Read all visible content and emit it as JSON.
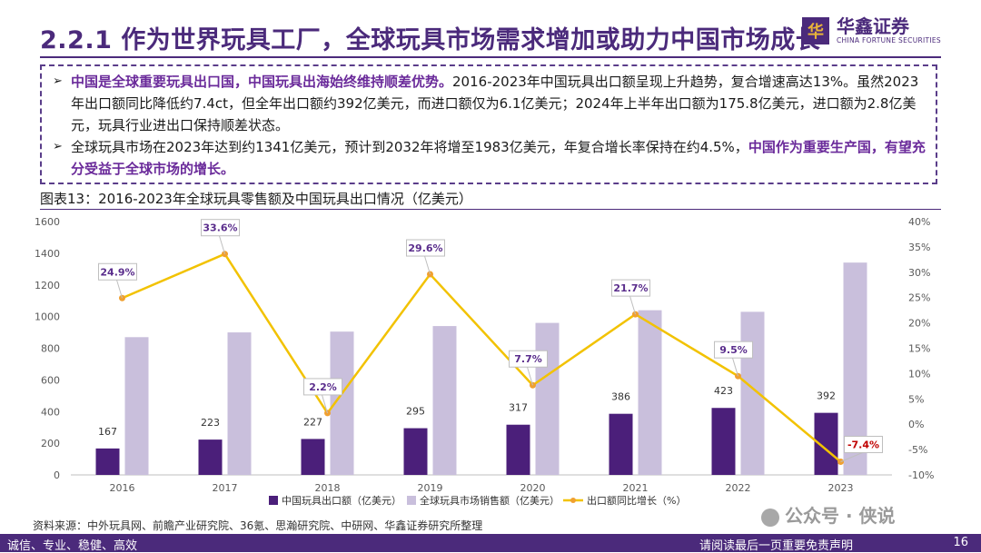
{
  "title": "2.2.1 作为世界玩具工厂，全球玩具市场需求增加或助力中国市场成长",
  "logo": {
    "mark": "华",
    "cn": "华鑫证券",
    "en": "CHINA FORTUNE SECURITIES"
  },
  "bullets": [
    {
      "marker": "➢",
      "highlight": "中国是全球重要玩具出口国，中国玩具出海始终维持顺差优势。",
      "text": "2016-2023年中国玩具出口额呈现上升趋势，复合增速高达13%。虽然2023年出口额同比降低约7.4ct，但全年出口额约392亿美元，而进口额仅为6.1亿美元；2024年上半年出口额为175.8亿美元，进口额为2.8亿美元，玩具行业进出口保持顺差状态。"
    },
    {
      "marker": "➢",
      "text": "全球玩具市场在2023年达到约1341亿美元，预计到2032年将增至1983亿美元，年复合增长率保持在约4.5%，",
      "highlight": "中国作为重要生产国，有望充分受益于全球市场的增长。"
    }
  ],
  "caption": "图表13：2016-2023年全球玩具零售额及中国玩具出口情况（亿美元）",
  "chart_data": {
    "type": "bar",
    "categories": [
      "2016",
      "2017",
      "2018",
      "2019",
      "2020",
      "2021",
      "2022",
      "2023"
    ],
    "series": [
      {
        "name": "中国玩具出口额（亿美元）",
        "type": "bar",
        "axis": "left",
        "color": "#4b1f7a",
        "values": [
          167,
          223,
          227,
          295,
          317,
          386,
          423,
          392
        ],
        "labels": [
          "167",
          "223",
          "227",
          "295",
          "317",
          "386",
          "423",
          "392"
        ]
      },
      {
        "name": "全球玩具市场销售额（亿美元）",
        "type": "bar",
        "axis": "left",
        "color": "#c9bfdc",
        "values": [
          870,
          900,
          905,
          940,
          960,
          1040,
          1030,
          1341
        ]
      },
      {
        "name": "出口额同比增长（%）",
        "type": "line",
        "axis": "right",
        "color": "#f2c200",
        "values": [
          24.9,
          33.6,
          2.2,
          29.6,
          7.7,
          21.7,
          9.5,
          -7.4
        ],
        "labels": [
          "24.9%",
          "33.6%",
          "2.2%",
          "29.6%",
          "7.7%",
          "21.7%",
          "9.5%",
          "-7.4%"
        ]
      }
    ],
    "y_left": {
      "min": 0,
      "max": 1600,
      "ticks": [
        "0",
        "200",
        "400",
        "600",
        "800",
        "1000",
        "1200",
        "1400",
        "1600"
      ]
    },
    "y_right": {
      "min": -10,
      "max": 40,
      "ticks": [
        "-10%",
        "-5%",
        "0%",
        "5%",
        "10%",
        "15%",
        "20%",
        "25%",
        "30%",
        "35%",
        "40%"
      ]
    },
    "legend_position": "bottom",
    "grid": false
  },
  "source": "资料来源：中外玩具网、前瞻产业研究院、36氪、思瀚研究院、中研网、华鑫证券研究所整理",
  "footer": {
    "left": "诚信、专业、稳健、高效",
    "right": "请阅读最后一页重要免责声明",
    "page": "16"
  },
  "watermark": "公众号 · 侠说"
}
